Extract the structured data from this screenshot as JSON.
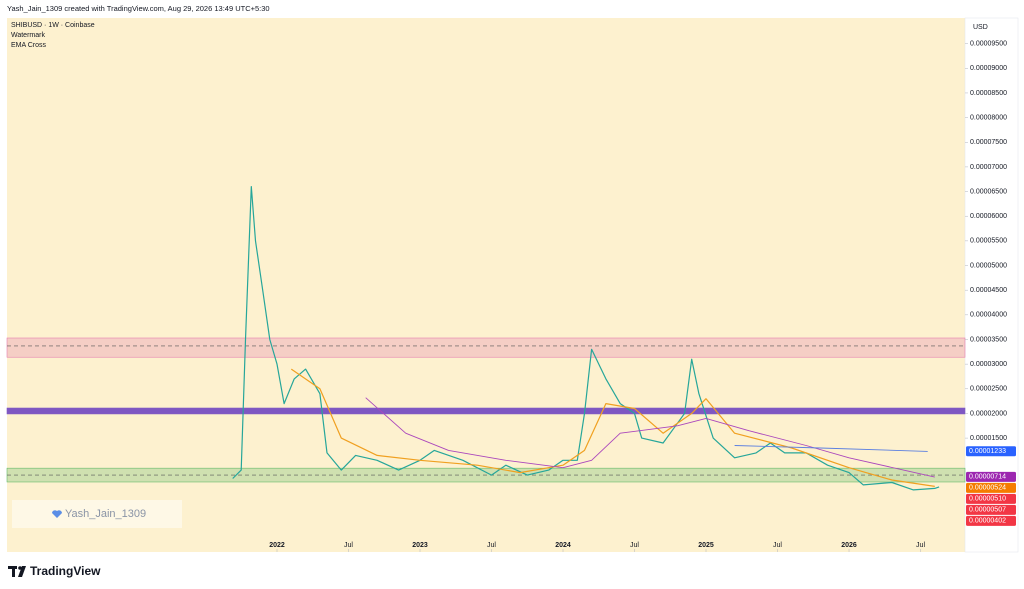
{
  "header": {
    "text": "Yash_Jain_1309 created with TradingView.com, Aug 29, 2026 13:49 UTC+5:30"
  },
  "footer": {
    "logo": "TradingView"
  },
  "chart_data": {
    "type": "line",
    "legend_lines": [
      "SHIBUSD · 1W · Coinbase",
      "Watermark",
      "EMA Cross"
    ],
    "currency": "USD",
    "watermark": "Yash_Jain_1309",
    "xlim": [
      2020.112,
      2026.811
    ],
    "xticks": [
      {
        "value": 2022,
        "label": "2022"
      },
      {
        "value": 2022.5,
        "label": "Jul"
      },
      {
        "value": 2023,
        "label": "2023"
      },
      {
        "value": 2023.5,
        "label": "Jul"
      },
      {
        "value": 2024,
        "label": "2024"
      },
      {
        "value": 2024.5,
        "label": "Jul"
      },
      {
        "value": 2025,
        "label": "2025"
      },
      {
        "value": 2025.5,
        "label": "Jul"
      },
      {
        "value": 2026,
        "label": "2026"
      },
      {
        "value": 2026.5,
        "label": "Jul"
      }
    ],
    "ylim": [
      -8.1e-06,
      0.0001002
    ],
    "yticks": [
      {
        "value": 1.5e-05,
        "label": "0.00001500"
      },
      {
        "value": 2e-05,
        "label": "0.00002000"
      },
      {
        "value": 2.5e-05,
        "label": "0.00002500"
      },
      {
        "value": 3e-05,
        "label": "0.00003000"
      },
      {
        "value": 3.5e-05,
        "label": "0.00003500"
      },
      {
        "value": 4e-05,
        "label": "0.00004000"
      },
      {
        "value": 4.5e-05,
        "label": "0.00004500"
      },
      {
        "value": 5e-05,
        "label": "0.00005000"
      },
      {
        "value": 5.5e-05,
        "label": "0.00005500"
      },
      {
        "value": 6e-05,
        "label": "0.00006000"
      },
      {
        "value": 6.5e-05,
        "label": "0.00006500"
      },
      {
        "value": 7e-05,
        "label": "0.00007000"
      },
      {
        "value": 7.5e-05,
        "label": "0.00007500"
      },
      {
        "value": 8e-05,
        "label": "0.00008000"
      },
      {
        "value": 8.5e-05,
        "label": "0.00008500"
      },
      {
        "value": 9e-05,
        "label": "0.00009000"
      },
      {
        "value": 9.5e-05,
        "label": "0.00009500"
      }
    ],
    "zones": [
      {
        "low": 3.14e-05,
        "high": 3.53e-05,
        "level": 3.37e-05,
        "color": "#e57fb0"
      },
      {
        "low": 1.99e-05,
        "high": 2.11e-05,
        "color": "#7e57c2"
      },
      {
        "low": 6.1e-06,
        "high": 8.9e-06,
        "level": 7.5e-06,
        "color": "#66bb6a"
      }
    ],
    "series": [
      {
        "color": "#26a69a",
        "width": 1.2,
        "x": [
          2021.69,
          2021.75,
          2021.78,
          2021.82,
          2021.85,
          2021.9,
          2021.95,
          2022.0,
          2022.05,
          2022.12,
          2022.2,
          2022.3,
          2022.35,
          2022.45,
          2022.55,
          2022.7,
          2022.85,
          2023.0,
          2023.1,
          2023.3,
          2023.5,
          2023.6,
          2023.75,
          2023.9,
          2024.0,
          2024.1,
          2024.15,
          2024.2,
          2024.3,
          2024.4,
          2024.5,
          2024.55,
          2024.7,
          2024.8,
          2024.85,
          2024.9,
          2024.95,
          2025.05,
          2025.2,
          2025.35,
          2025.45,
          2025.55,
          2025.7,
          2025.85,
          2026.0,
          2026.1,
          2026.3,
          2026.45,
          2026.6,
          2026.63
        ],
        "values": [
          6.8e-06,
          8.5e-06,
          3.5e-05,
          6.6e-05,
          5.5e-05,
          4.5e-05,
          3.5e-05,
          3e-05,
          2.2e-05,
          2.7e-05,
          2.9e-05,
          2.4e-05,
          1.2e-05,
          8.5e-06,
          1.15e-05,
          1.05e-05,
          8.5e-06,
          1.05e-05,
          1.25e-05,
          1.05e-05,
          7.5e-06,
          9.5e-06,
          7.5e-06,
          8.5e-06,
          1.05e-05,
          1.05e-05,
          2e-05,
          3.3e-05,
          2.7e-05,
          2.2e-05,
          2e-05,
          1.5e-05,
          1.4e-05,
          1.8e-05,
          2e-05,
          3.1e-05,
          2.4e-05,
          1.5e-05,
          1.1e-05,
          1.2e-05,
          1.4e-05,
          1.2e-05,
          1.2e-05,
          9.5e-06,
          8e-06,
          5.5e-06,
          6e-06,
          4.5e-06,
          4.8e-06,
          5.1e-06
        ]
      },
      {
        "color": "#f0a020",
        "width": 1.2,
        "x": [
          2022.1,
          2022.3,
          2022.45,
          2022.7,
          2023.0,
          2023.4,
          2023.7,
          2024.0,
          2024.15,
          2024.3,
          2024.5,
          2024.7,
          2024.9,
          2025.0,
          2025.2,
          2025.6,
          2026.0,
          2026.3,
          2026.6
        ],
        "values": [
          2.9e-05,
          2.5e-05,
          1.5e-05,
          1.15e-05,
          1.05e-05,
          9.5e-06,
          8e-06,
          9.5e-06,
          1.25e-05,
          2.2e-05,
          2.1e-05,
          1.6e-05,
          2e-05,
          2.3e-05,
          1.6e-05,
          1.3e-05,
          9e-06,
          6.5e-06,
          5.2e-06
        ]
      },
      {
        "color": "#ab47bc",
        "width": 0.9,
        "x": [
          2022.62,
          2022.9,
          2023.2,
          2023.6,
          2024.0,
          2024.2,
          2024.4,
          2024.8,
          2025.0,
          2025.3,
          2025.7,
          2026.0,
          2026.6
        ],
        "values": [
          2.32e-05,
          1.6e-05,
          1.25e-05,
          1.05e-05,
          9e-06,
          1.05e-05,
          1.6e-05,
          1.75e-05,
          1.9e-05,
          1.65e-05,
          1.35e-05,
          1.1e-05,
          7.1e-06
        ]
      },
      {
        "color": "#5b7fe0",
        "width": 0.9,
        "x": [
          2025.2,
          2025.8,
          2026.55
        ],
        "values": [
          1.35e-05,
          1.3e-05,
          1.23e-05
        ]
      }
    ],
    "price_labels": [
      {
        "value": 1.233e-05,
        "label": "0.00001233",
        "color": "#2962ff"
      },
      {
        "value": 7.14e-06,
        "label": "0.00000714",
        "color": "#9c27b0"
      },
      {
        "value": 5.24e-06,
        "label": "0.00000524",
        "color": "#f57c00"
      },
      {
        "value": 5.1e-06,
        "label": "0.00000510",
        "color": "#f23645"
      },
      {
        "value": 5.07e-06,
        "label": "0.00000507",
        "color": "#f23645"
      },
      {
        "value": 4.02e-06,
        "label": "0.00000402",
        "color": "#f23645"
      }
    ]
  }
}
